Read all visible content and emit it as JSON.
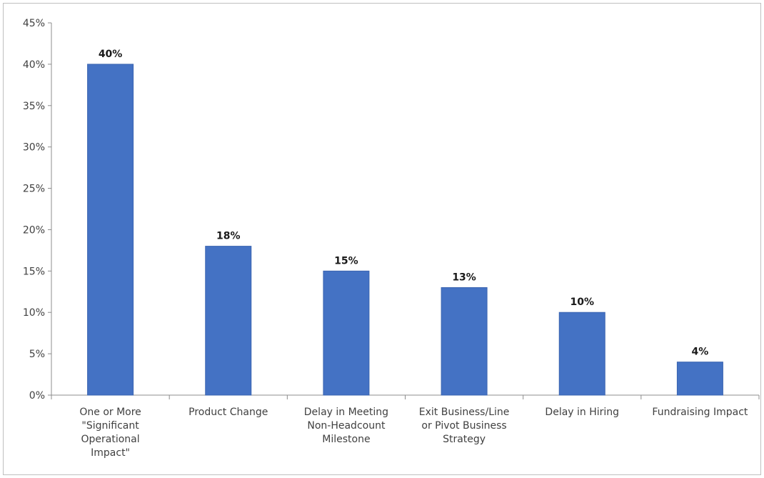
{
  "chart_data": {
    "type": "bar",
    "categories": [
      [
        "One or More",
        "\"Significant",
        "Operational",
        "Impact\""
      ],
      [
        "Product Change"
      ],
      [
        "Delay in Meeting",
        "Non-Headcount",
        "Milestone"
      ],
      [
        "Exit Business/Line",
        "or Pivot Business",
        "Strategy"
      ],
      [
        "Delay in Hiring"
      ],
      [
        "Fundraising Impact"
      ]
    ],
    "values": [
      40,
      18,
      15,
      13,
      10,
      4
    ],
    "data_labels": [
      "40%",
      "18%",
      "15%",
      "13%",
      "10%",
      "4%"
    ],
    "ylim": [
      0,
      45
    ],
    "yticks": [
      0,
      5,
      10,
      15,
      20,
      25,
      30,
      35,
      40,
      45
    ],
    "ytick_labels": [
      "0%",
      "5%",
      "10%",
      "15%",
      "20%",
      "25%",
      "30%",
      "35%",
      "40%",
      "45%"
    ],
    "title": "",
    "xlabel": "",
    "ylabel": "",
    "grid": false,
    "legend": "none",
    "colors": {
      "bar": "#4472c4",
      "bar_edge": "#3a64b0",
      "axis": "#8c8c8c"
    }
  }
}
